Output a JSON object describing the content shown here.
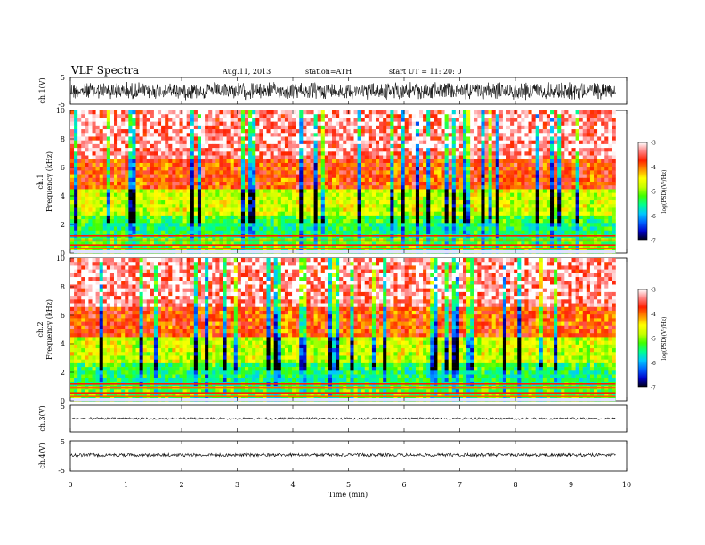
{
  "header": {
    "title": "VLF  Spectra",
    "date": "Aug.11, 2013",
    "station": "station=ATH",
    "start": "start  UT  =   11: 20: 0"
  },
  "chart_data": [
    {
      "type": "line",
      "panel": "ch1-waveform",
      "ylabel": "ch.1(V)",
      "ylim": [
        -5,
        5
      ],
      "yticks": [
        "5",
        "-5"
      ],
      "xlim": [
        0,
        10
      ],
      "description_values": {
        "amplitude_approx": 3
      }
    },
    {
      "type": "heatmap",
      "panel": "ch1-spectrogram",
      "ylabel": "ch.1\nFrequency  (kHz)",
      "ylabel_line1": "ch.1",
      "ylabel_line2": "Frequency  (kHz)",
      "ylim": [
        0,
        10
      ],
      "yticks": [
        "0",
        "2",
        "4",
        "6",
        "8",
        "10"
      ],
      "xlim": [
        0,
        10
      ],
      "colorbar": {
        "label": "log(PSD)(V²/Hz)",
        "range": [
          -7,
          -3
        ],
        "ticks": [
          "-3",
          "-4",
          "-5",
          "-6",
          "-7"
        ]
      }
    },
    {
      "type": "heatmap",
      "panel": "ch2-spectrogram",
      "ylabel_line1": "ch.2",
      "ylabel_line2": "Frequency  (kHz)",
      "ylim": [
        0,
        10
      ],
      "yticks": [
        "0",
        "2",
        "4",
        "6",
        "8",
        "10"
      ],
      "xlim": [
        0,
        10
      ],
      "colorbar": {
        "label": "log(PSD)(V²/Hz)",
        "range": [
          -7,
          -3
        ],
        "ticks": [
          "-3",
          "-4",
          "-5",
          "-6",
          "-7"
        ]
      }
    },
    {
      "type": "line",
      "panel": "ch3-waveform",
      "ylabel": "ch.3(V)",
      "ylim": [
        -5,
        5
      ],
      "yticks": [
        "5"
      ],
      "xlim": [
        0,
        10
      ],
      "description_values": {
        "amplitude_approx": 0.2
      }
    },
    {
      "type": "line",
      "panel": "ch4-waveform",
      "ylabel": "ch.4(V)",
      "ylim": [
        -5,
        5
      ],
      "yticks": [
        "5",
        "-5"
      ],
      "xlim": [
        0,
        10
      ],
      "description_values": {
        "amplitude_approx": 0.3
      }
    }
  ],
  "xaxis": {
    "label": "Time  (min)",
    "ticks": [
      "0",
      "1",
      "2",
      "3",
      "4",
      "5",
      "6",
      "7",
      "8",
      "9",
      "10"
    ],
    "data_end": 9.8
  },
  "colors": {
    "waveform": "#000000",
    "colormap": [
      "#000000",
      "#0000c8",
      "#0060ff",
      "#00c8ff",
      "#00ff90",
      "#40ff00",
      "#c8ff00",
      "#ffff00",
      "#ff9000",
      "#ff2000",
      "#ff8080",
      "#ffffff"
    ]
  }
}
